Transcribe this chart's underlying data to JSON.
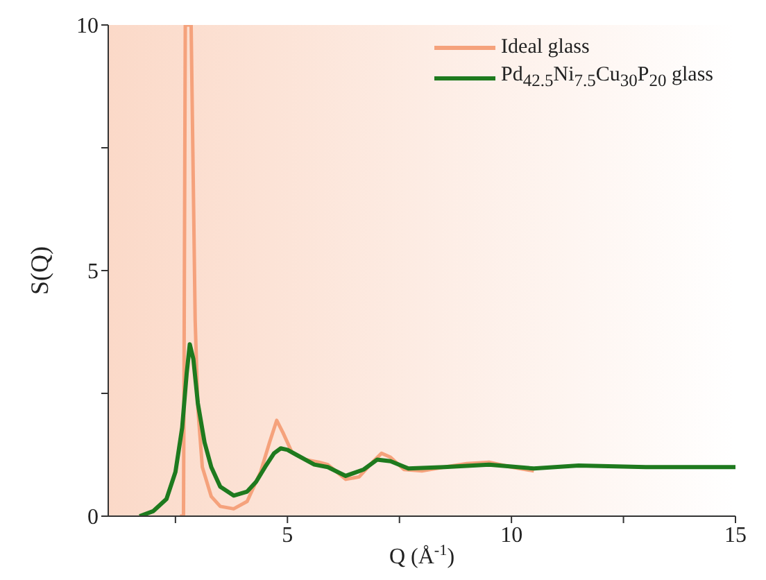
{
  "chart_data": {
    "type": "line",
    "xlabel": "Q (Å$^{-1}$)",
    "ylabel": "S(Q)",
    "xlim": [
      1,
      15
    ],
    "xticks": [
      {
        "value": 2.5,
        "label": null
      },
      5,
      {
        "value": 7.5,
        "label": null
      },
      10,
      {
        "value": 12.5,
        "label": null
      },
      15
    ],
    "ylim": [
      0,
      10
    ],
    "yticks": [
      0,
      {
        "value": 2.5,
        "label": null
      },
      5,
      {
        "value": 7.5,
        "label": null
      },
      10
    ],
    "grid": false,
    "legend": "top right",
    "marker": "none",
    "line_style": "solid",
    "series": [
      {
        "name": "Ideal glass",
        "color": "#f5a27c",
        "x": [
          2.6,
          2.68,
          2.72,
          2.85,
          2.94,
          3.0,
          3.1,
          3.3,
          3.5,
          3.8,
          4.1,
          4.4,
          4.6,
          4.76,
          4.9,
          5.1,
          5.4,
          5.7,
          5.9,
          6.1,
          6.3,
          6.6,
          6.9,
          7.1,
          7.3,
          7.6,
          8.0,
          8.5,
          9.0,
          9.5,
          10.0,
          10.5
        ],
        "values": [
          0,
          0,
          10,
          10,
          4,
          2.2,
          1.0,
          0.4,
          0.2,
          0.15,
          0.3,
          0.9,
          1.5,
          1.95,
          1.7,
          1.3,
          1.15,
          1.1,
          1.05,
          0.9,
          0.75,
          0.8,
          1.1,
          1.28,
          1.2,
          0.95,
          0.92,
          1.0,
          1.07,
          1.1,
          1.0,
          0.92
        ]
      },
      {
        "name": "Pd$_{42.5}$Ni$_{7.5}$Cu$_{30}$P$_{20}$ glass",
        "color": "#1e7a1e",
        "x": [
          1.7,
          2.0,
          2.3,
          2.5,
          2.65,
          2.75,
          2.82,
          2.9,
          3.0,
          3.15,
          3.3,
          3.5,
          3.8,
          4.1,
          4.3,
          4.5,
          4.7,
          4.85,
          5.0,
          5.2,
          5.6,
          5.9,
          6.3,
          6.7,
          7.0,
          7.3,
          7.7,
          8.5,
          9.5,
          10.5,
          11.5,
          13.0,
          14.0,
          15.0
        ],
        "values": [
          0,
          0.1,
          0.35,
          0.9,
          1.8,
          2.9,
          3.5,
          3.2,
          2.3,
          1.5,
          1.0,
          0.6,
          0.42,
          0.5,
          0.7,
          1.0,
          1.28,
          1.38,
          1.35,
          1.25,
          1.05,
          1.0,
          0.82,
          0.95,
          1.15,
          1.12,
          0.97,
          1.0,
          1.05,
          0.97,
          1.03,
          1.0,
          1.0,
          1.0
        ]
      }
    ]
  }
}
